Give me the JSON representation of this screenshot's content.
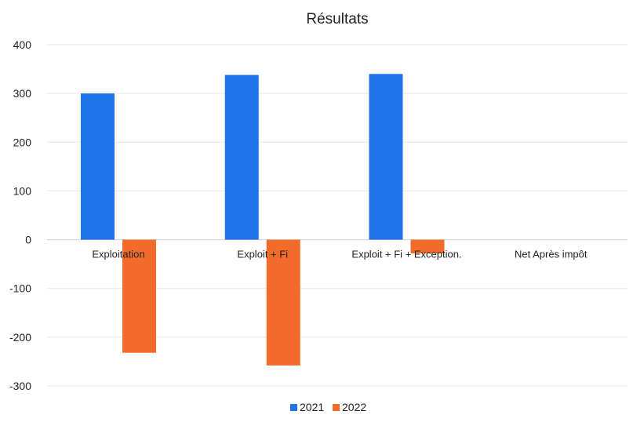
{
  "chart_data": {
    "type": "bar",
    "title": "Résultats",
    "categories": [
      "Exploitation",
      "Exploit + Fi",
      "Exploit + Fi + Exception.",
      "Net Après impôt"
    ],
    "series": [
      {
        "name": "2021",
        "values": [
          300,
          338,
          340,
          null
        ],
        "color": "#1e73e8"
      },
      {
        "name": "2022",
        "values": [
          -232,
          -258,
          -28,
          null
        ],
        "color": "#f26b2a"
      }
    ],
    "ylim": [
      -300,
      400
    ],
    "yticks": [
      400,
      300,
      200,
      100,
      0,
      -100,
      -200,
      -300
    ],
    "grid": true,
    "legend": "bottom"
  }
}
